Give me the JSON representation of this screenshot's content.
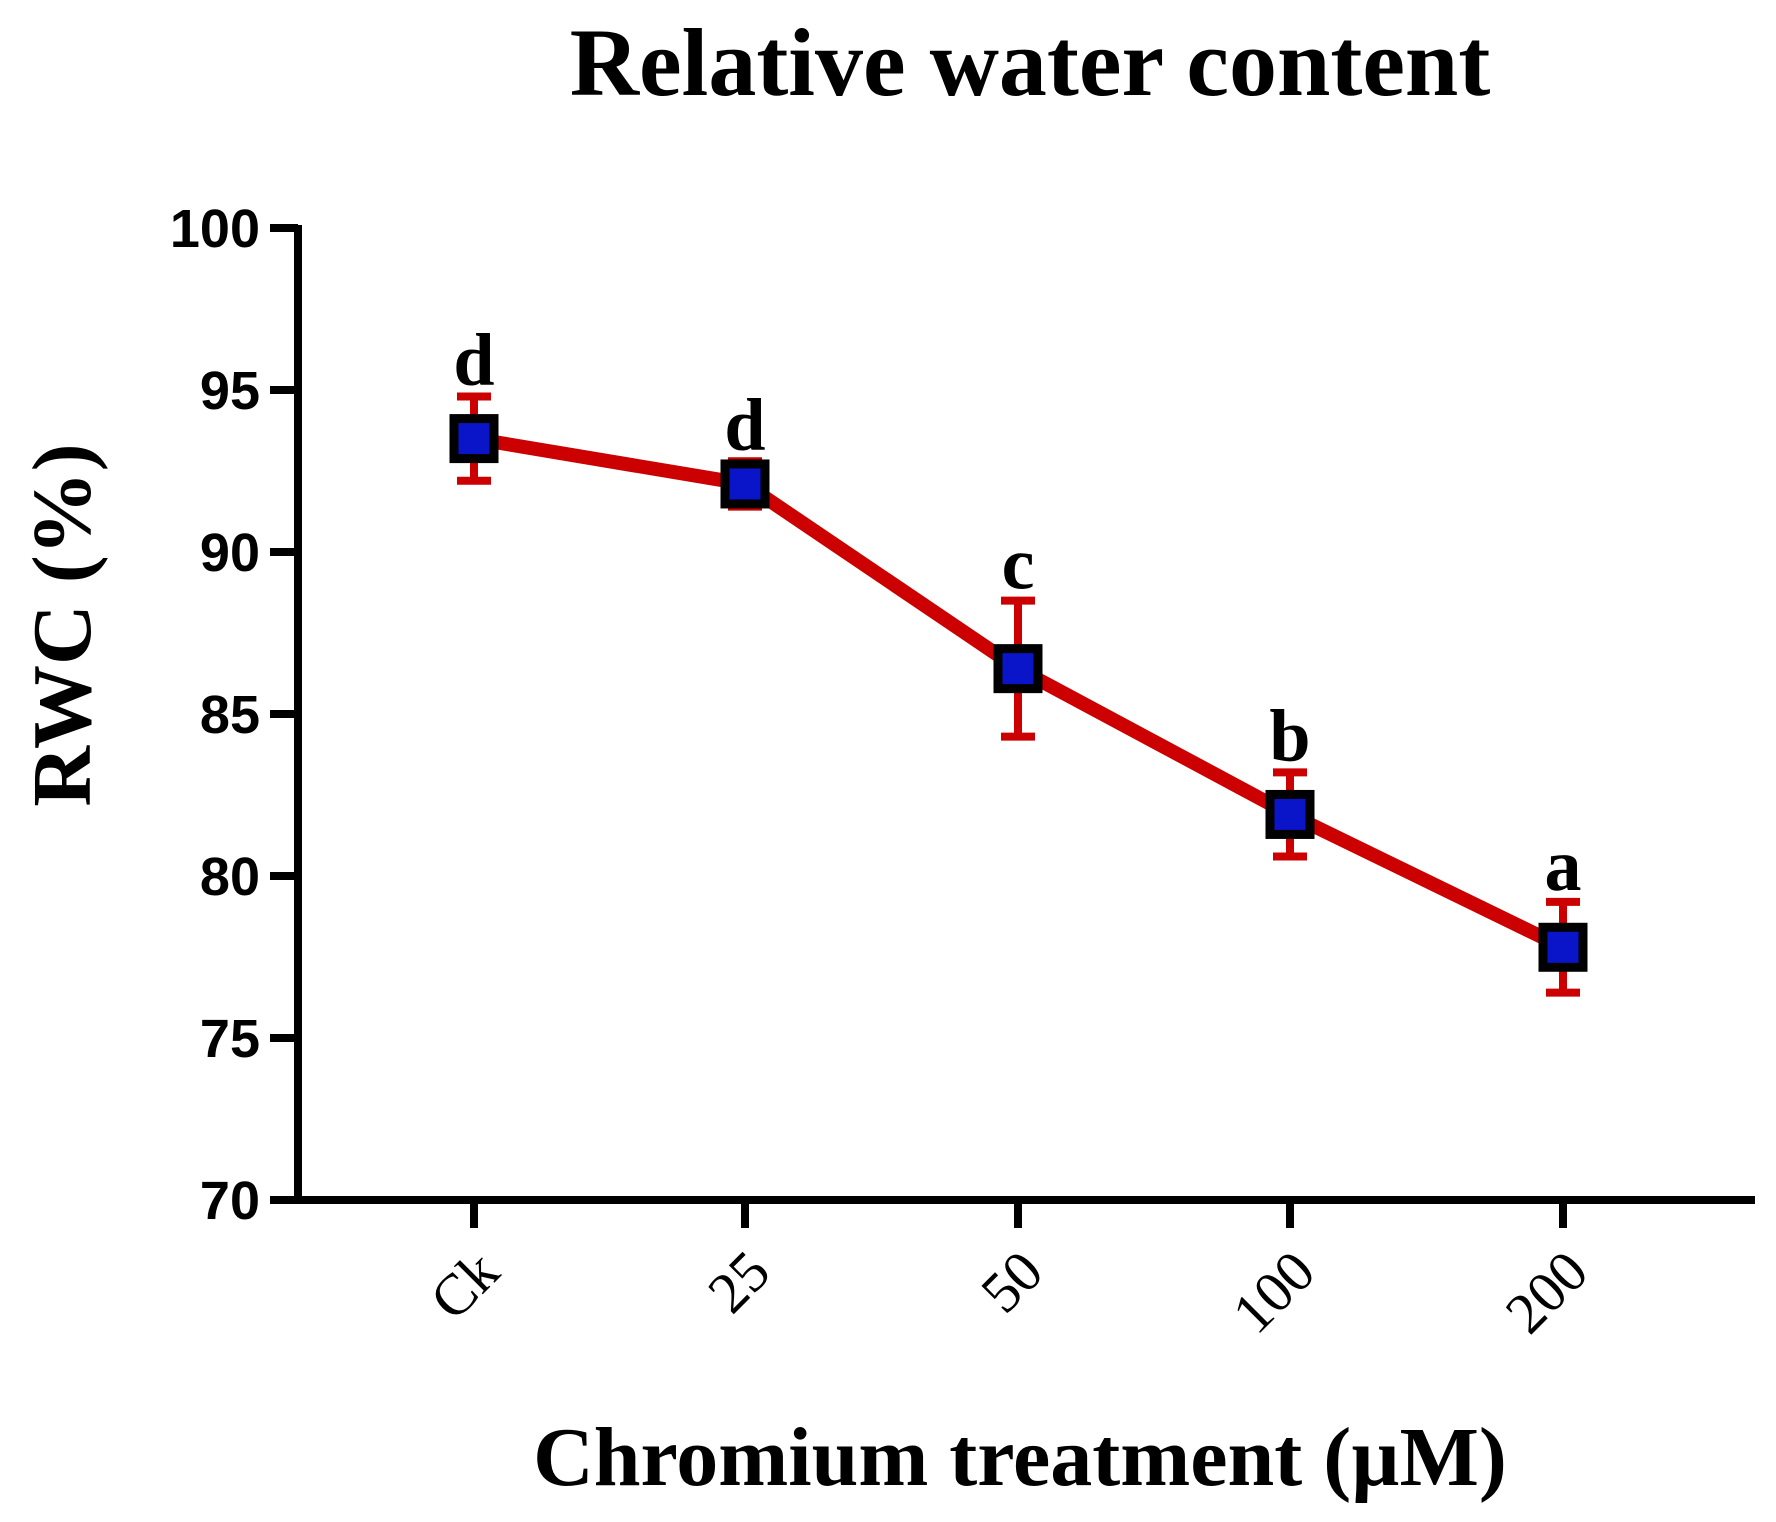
{
  "chart_data": {
    "type": "line",
    "title": "Relative water content",
    "xlabel": "Chromium treatment (µM)",
    "ylabel": "RWC (%)",
    "categories": [
      "Ck",
      "25",
      "50",
      "100",
      "200"
    ],
    "series": [
      {
        "name": "RWC",
        "values": [
          93.5,
          92.1,
          86.4,
          81.9,
          77.8
        ],
        "error": [
          1.3,
          0.7,
          2.1,
          1.3,
          1.4
        ],
        "significance": [
          "d",
          "d",
          "c",
          "b",
          "a"
        ]
      }
    ],
    "ylim": [
      70,
      100
    ],
    "yticks": [
      70,
      75,
      80,
      85,
      90,
      95,
      100
    ],
    "grid": false,
    "colors": {
      "line": "#cc0000",
      "errorbar": "#cc0000",
      "marker_fill": "#0a14c8",
      "marker_edge": "#000000",
      "axis": "#000000"
    }
  }
}
